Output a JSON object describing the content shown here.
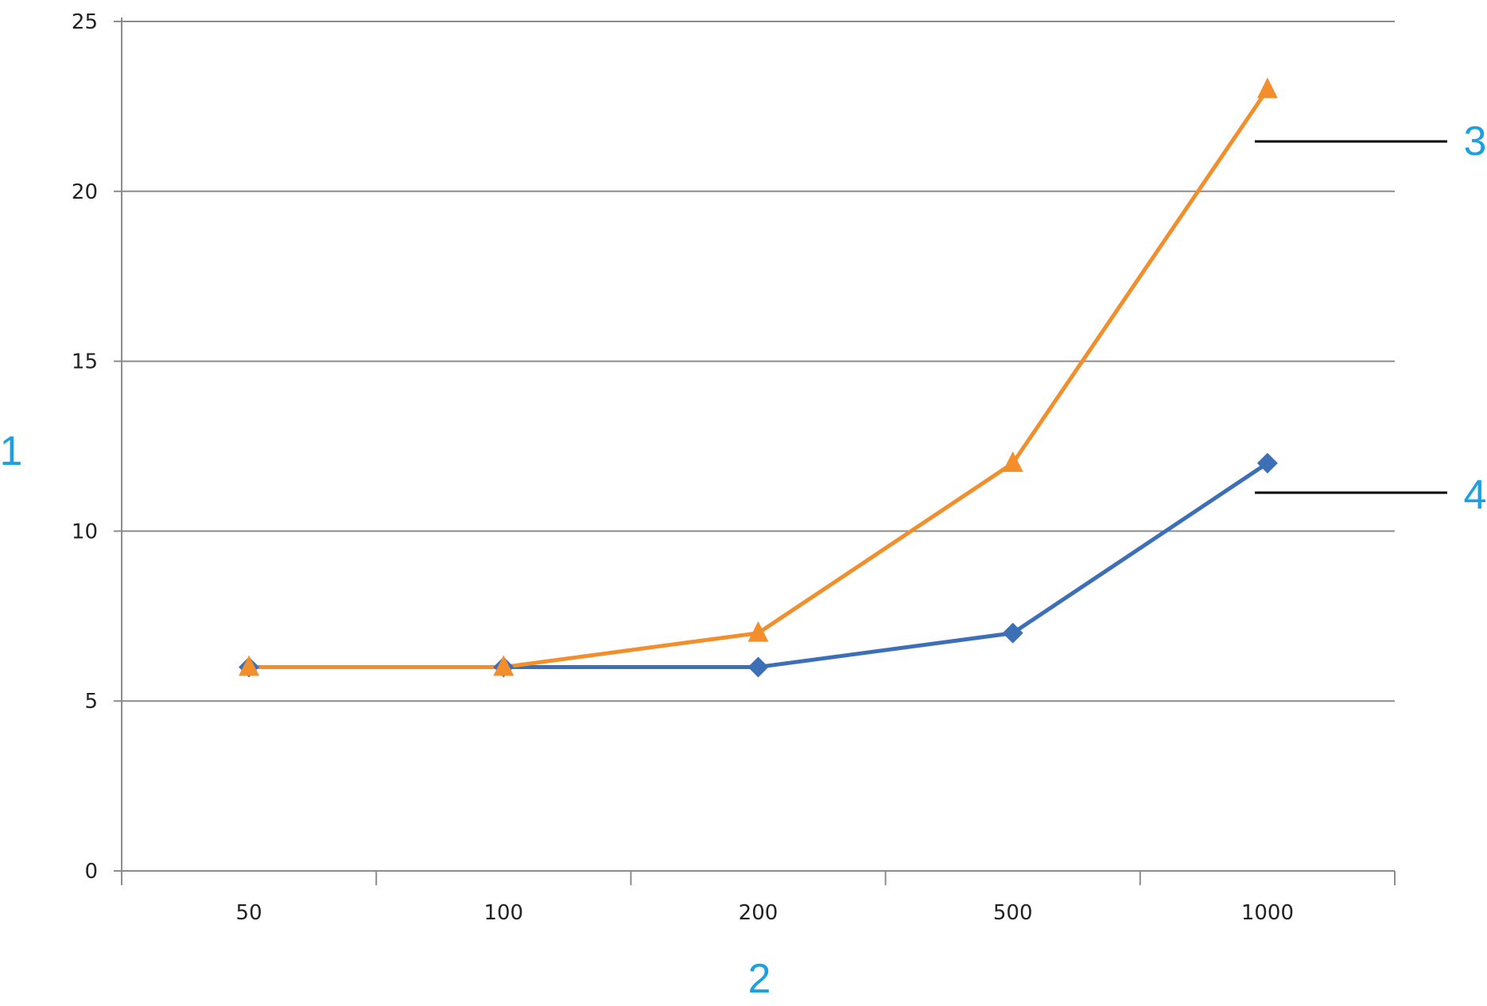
{
  "chart_data": {
    "type": "line",
    "categories": [
      "50",
      "100",
      "200",
      "500",
      "1000"
    ],
    "series": [
      {
        "values": [
          6,
          6,
          7,
          12,
          23
        ],
        "color": "#f28e2b",
        "marker": "triangle"
      },
      {
        "values": [
          6,
          6,
          6,
          7,
          12
        ],
        "color": "#3c6fb6",
        "marker": "diamond"
      }
    ],
    "ylim": [
      0,
      25
    ],
    "yticks": [
      "0",
      "5",
      "10",
      "15",
      "20",
      "25"
    ],
    "grid": true,
    "legend": "none",
    "callouts": {
      "yaxis": "1",
      "xaxis": "2",
      "upper_series": "3",
      "lower_series": "4"
    },
    "callout_color": "#1ba1e2"
  }
}
